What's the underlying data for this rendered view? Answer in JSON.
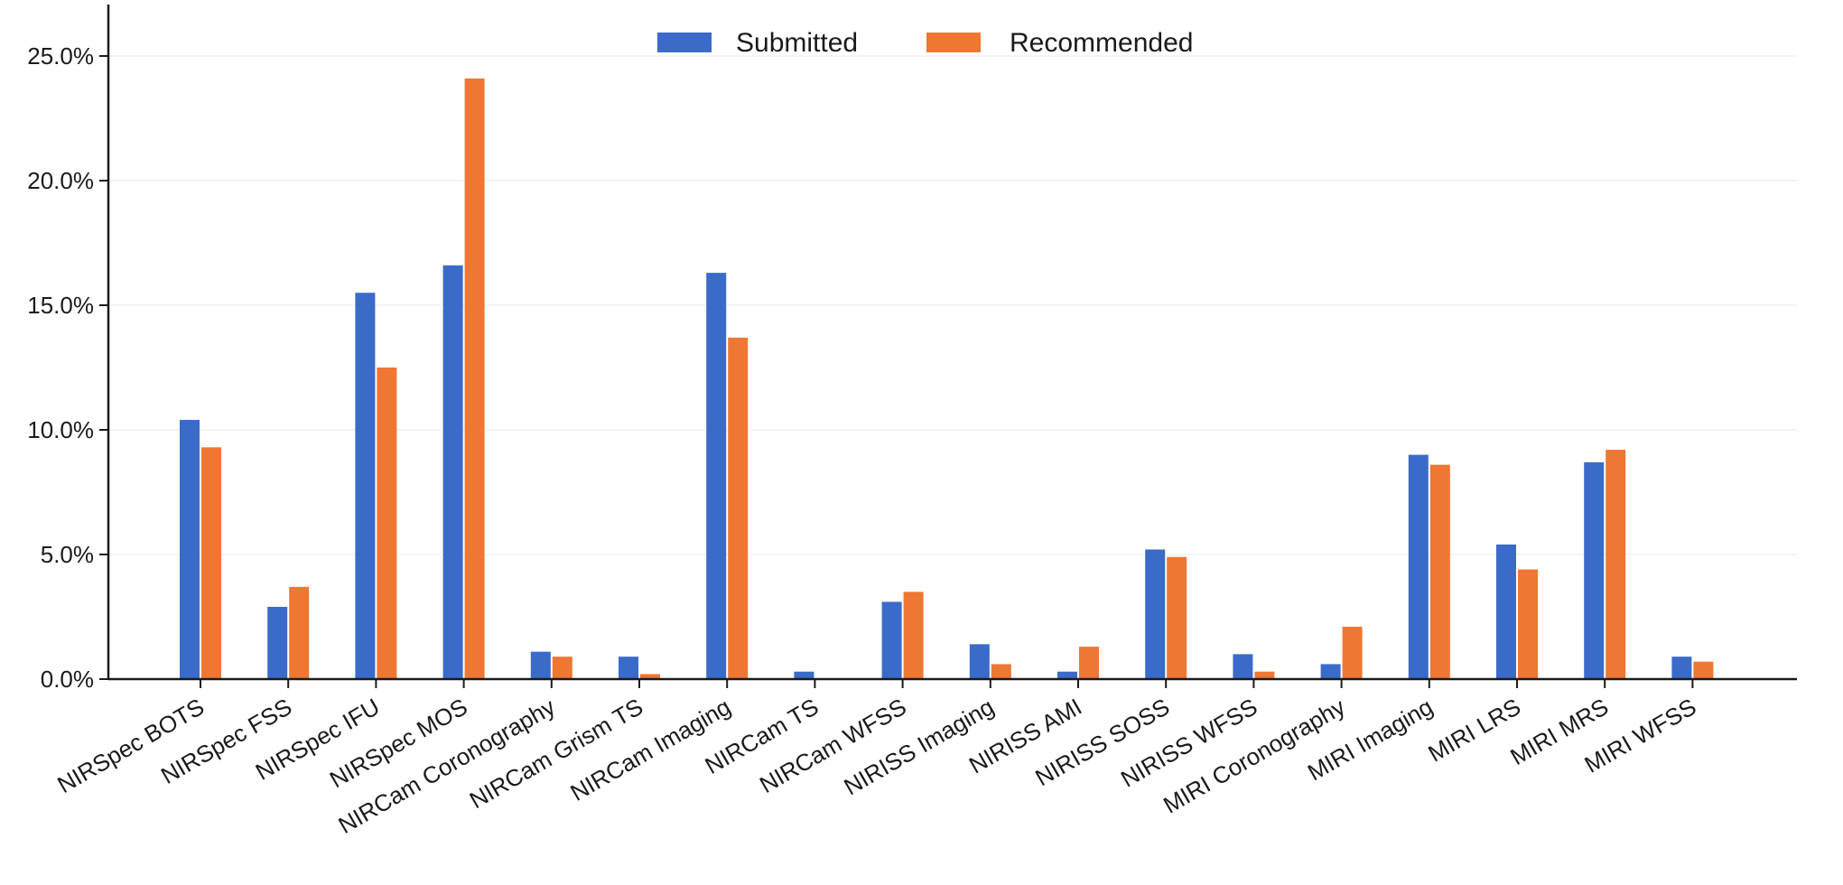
{
  "chart_data": {
    "type": "bar",
    "title": "",
    "xlabel": "",
    "ylabel": "",
    "ylim": [
      0,
      26.5
    ],
    "yticks": [
      0,
      5,
      10,
      15,
      20,
      25
    ],
    "ytick_labels": [
      "0.0%",
      "5.0%",
      "10.0%",
      "15.0%",
      "20.0%",
      "25.0%"
    ],
    "grid": true,
    "legend_position": "top-center",
    "categories": [
      "NIRSpec BOTS",
      "NIRSpec FSS",
      "NIRSpec IFU",
      "NIRSpec MOS",
      "NIRCam Coronography",
      "NIRCam Grism TS",
      "NIRCam Imaging",
      "NIRCam TS",
      "NIRCam WFSS",
      "NIRISS Imaging",
      "NIRISS AMI",
      "NIRISS SOSS",
      "NIRISS WFSS",
      "MIRI Coronography",
      "MIRI Imaging",
      "MIRI LRS",
      "MIRI MRS",
      "MIRI WFSS"
    ],
    "series": [
      {
        "name": "Submitted",
        "color": "#3a6bc9",
        "values": [
          10.4,
          2.9,
          15.5,
          16.6,
          1.1,
          0.9,
          16.3,
          0.3,
          3.1,
          1.4,
          0.3,
          5.2,
          1.0,
          0.6,
          9.0,
          5.4,
          8.7,
          0.9
        ]
      },
      {
        "name": "Recommended",
        "color": "#ee7733",
        "values": [
          9.3,
          3.7,
          12.5,
          24.1,
          0.9,
          0.2,
          13.7,
          0.0,
          3.5,
          0.6,
          1.3,
          4.9,
          0.3,
          2.1,
          8.6,
          4.4,
          9.2,
          0.7
        ]
      }
    ]
  }
}
